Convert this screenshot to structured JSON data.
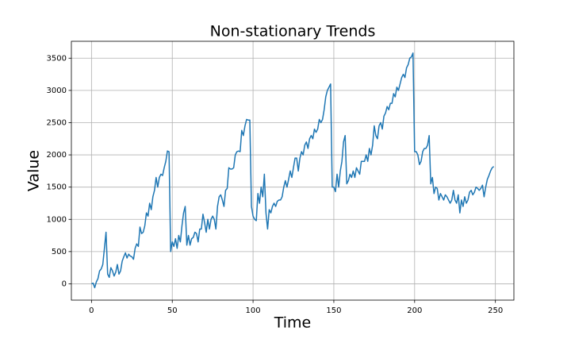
{
  "chart_data": {
    "type": "line",
    "title": "Non-stationary Trends",
    "xlabel": "Time",
    "ylabel": "Value",
    "x": [
      0,
      1,
      2,
      3,
      4,
      5,
      6,
      7,
      8,
      9,
      10,
      11,
      12,
      13,
      14,
      15,
      16,
      17,
      18,
      19,
      20,
      21,
      22,
      23,
      24,
      25,
      26,
      27,
      28,
      29,
      30,
      31,
      32,
      33,
      34,
      35,
      36,
      37,
      38,
      39,
      40,
      41,
      42,
      43,
      44,
      45,
      46,
      47,
      48,
      49,
      50,
      51,
      52,
      53,
      54,
      55,
      56,
      57,
      58,
      59,
      60,
      61,
      62,
      63,
      64,
      65,
      66,
      67,
      68,
      69,
      70,
      71,
      72,
      73,
      74,
      75,
      76,
      77,
      78,
      79,
      80,
      81,
      82,
      83,
      84,
      85,
      86,
      87,
      88,
      89,
      90,
      91,
      92,
      93,
      94,
      95,
      96,
      97,
      98,
      99,
      100,
      101,
      102,
      103,
      104,
      105,
      106,
      107,
      108,
      109,
      110,
      111,
      112,
      113,
      114,
      115,
      116,
      117,
      118,
      119,
      120,
      121,
      122,
      123,
      124,
      125,
      126,
      127,
      128,
      129,
      130,
      131,
      132,
      133,
      134,
      135,
      136,
      137,
      138,
      139,
      140,
      141,
      142,
      143,
      144,
      145,
      146,
      147,
      148,
      149,
      150,
      151,
      152,
      153,
      154,
      155,
      156,
      157,
      158,
      159,
      160,
      161,
      162,
      163,
      164,
      165,
      166,
      167,
      168,
      169,
      170,
      171,
      172,
      173,
      174,
      175,
      176,
      177,
      178,
      179,
      180,
      181,
      182,
      183,
      184,
      185,
      186,
      187,
      188,
      189,
      190,
      191,
      192,
      193,
      194,
      195,
      196,
      197,
      198,
      199,
      200,
      201,
      202,
      203,
      204,
      205,
      206,
      207,
      208,
      209,
      210,
      211,
      212,
      213,
      214,
      215,
      216,
      217,
      218,
      219,
      220,
      221,
      222,
      223,
      224,
      225,
      226,
      227,
      228,
      229,
      230,
      231,
      232,
      233,
      234,
      235,
      236,
      237,
      238,
      239,
      240,
      241,
      242,
      243,
      244,
      245,
      246,
      247,
      248,
      249
    ],
    "series": [
      {
        "color": "#1f77b4",
        "values": [
          0,
          10,
          -60,
          30,
          80,
          200,
          230,
          300,
          550,
          800,
          150,
          100,
          250,
          200,
          120,
          180,
          300,
          150,
          200,
          350,
          420,
          480,
          400,
          460,
          430,
          420,
          380,
          550,
          620,
          580,
          880,
          780,
          800,
          900,
          1100,
          1050,
          1250,
          1150,
          1350,
          1450,
          1650,
          1500,
          1650,
          1700,
          1680,
          1800,
          1900,
          2060,
          2050,
          500,
          650,
          580,
          700,
          550,
          750,
          650,
          900,
          1100,
          1200,
          600,
          750,
          600,
          700,
          720,
          800,
          780,
          650,
          850,
          850,
          1080,
          950,
          800,
          1000,
          850,
          1000,
          1050,
          1000,
          850,
          1200,
          1350,
          1380,
          1300,
          1200,
          1450,
          1480,
          1800,
          1780,
          1780,
          1800,
          2000,
          2050,
          2060,
          2050,
          2380,
          2300,
          2450,
          2550,
          2540,
          2540,
          1200,
          1050,
          1000,
          980,
          1400,
          1250,
          1500,
          1350,
          1700,
          1100,
          850,
          1150,
          1100,
          1200,
          1250,
          1200,
          1280,
          1300,
          1300,
          1350,
          1500,
          1600,
          1500,
          1620,
          1750,
          1650,
          1800,
          1950,
          1950,
          1750,
          1950,
          2050,
          2000,
          2150,
          2200,
          2100,
          2250,
          2300,
          2250,
          2400,
          2350,
          2400,
          2550,
          2500,
          2550,
          2700,
          2900,
          3000,
          3050,
          3100,
          1500,
          1500,
          1430,
          1700,
          1500,
          1750,
          1900,
          2200,
          2300,
          1550,
          1600,
          1700,
          1650,
          1750,
          1650,
          1800,
          1750,
          1700,
          1900,
          1900,
          1900,
          2000,
          1900,
          2100,
          2000,
          2150,
          2450,
          2300,
          2250,
          2450,
          2500,
          2400,
          2600,
          2650,
          2750,
          2700,
          2800,
          2800,
          2950,
          2900,
          3050,
          3000,
          3100,
          3200,
          3250,
          3200,
          3350,
          3400,
          3500,
          3520,
          3580,
          2050,
          2050,
          2000,
          1850,
          1900,
          2050,
          2100,
          2100,
          2150,
          2300,
          1550,
          1650,
          1400,
          1500,
          1480,
          1300,
          1400,
          1350,
          1300,
          1380,
          1350,
          1300,
          1250,
          1300,
          1450,
          1300,
          1250,
          1380,
          1100,
          1300,
          1200,
          1350,
          1250,
          1300,
          1420,
          1450,
          1380,
          1420,
          1500,
          1480,
          1450,
          1480,
          1530,
          1350,
          1500,
          1620,
          1680,
          1750,
          1800,
          1820
        ]
      }
    ],
    "xlim": [
      -12.45,
      261.45
    ],
    "ylim": [
      -253,
      3762
    ],
    "xticks": [
      0,
      50,
      100,
      150,
      200,
      250
    ],
    "yticks": [
      0,
      500,
      1000,
      1500,
      2000,
      2500,
      3000,
      3500
    ],
    "grid": true
  }
}
